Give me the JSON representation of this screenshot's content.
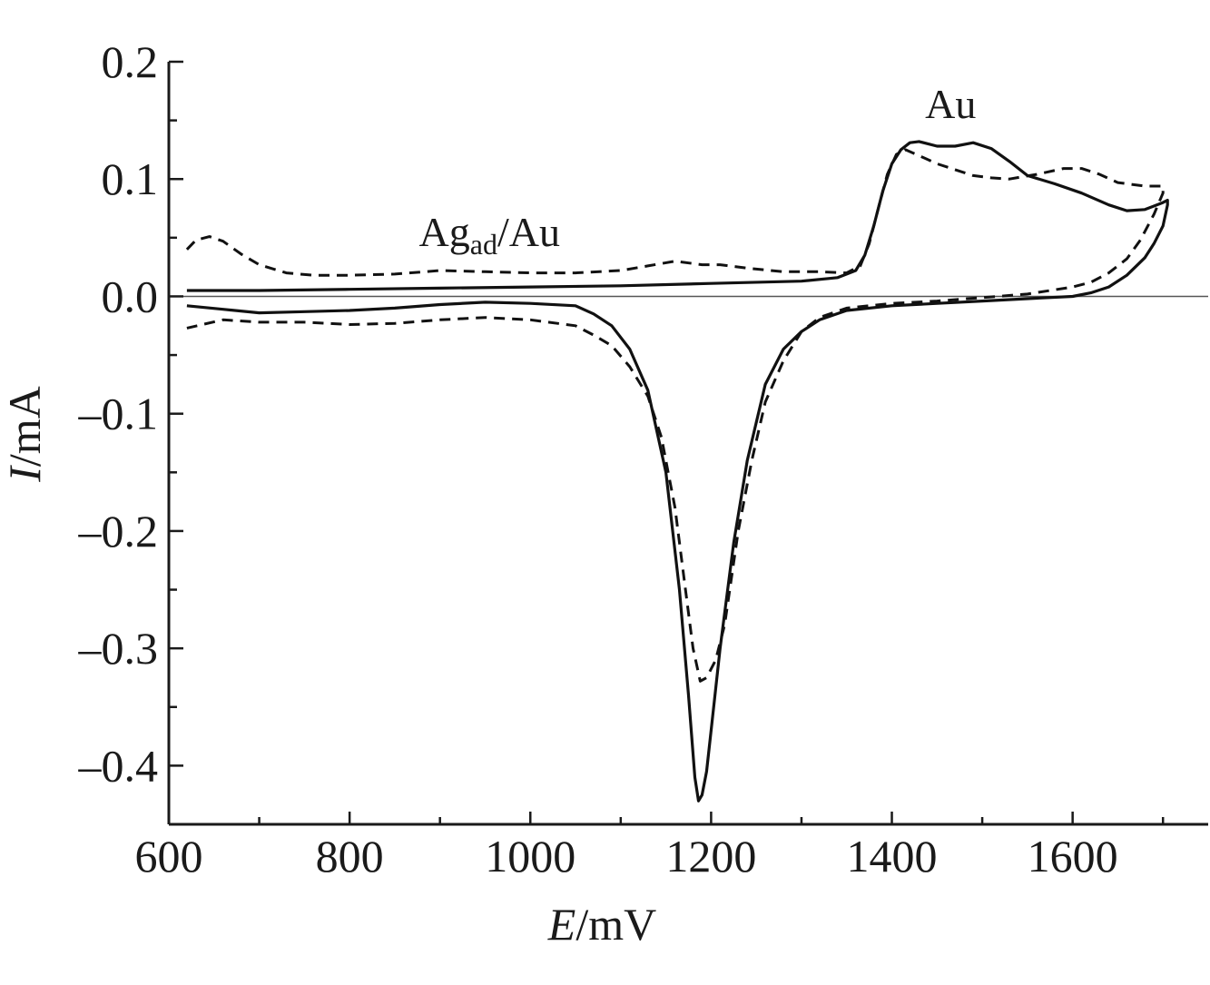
{
  "chart_data": {
    "type": "line",
    "xlabel_var": "E",
    "xlabel_unit": "/mV",
    "ylabel_var": "I",
    "ylabel_unit": "/mA",
    "xlim": [
      600,
      1750
    ],
    "ylim": [
      -0.45,
      0.2
    ],
    "x_ticks": [
      {
        "value": 600,
        "label": "600"
      },
      {
        "value": 800,
        "label": "800"
      },
      {
        "value": 1000,
        "label": "1000"
      },
      {
        "value": 1200,
        "label": "1200"
      },
      {
        "value": 1400,
        "label": "1400"
      },
      {
        "value": 1600,
        "label": "1600"
      }
    ],
    "x_minor_ticks": [
      700,
      900,
      1100,
      1300,
      1500,
      1700
    ],
    "y_ticks": [
      {
        "value": 0.2,
        "label": "0.2"
      },
      {
        "value": 0.1,
        "label": "0.1"
      },
      {
        "value": 0.0,
        "label": "0.0"
      },
      {
        "value": -0.1,
        "label": "–0.1"
      },
      {
        "value": -0.2,
        "label": "–0.2"
      },
      {
        "value": -0.3,
        "label": "–0.3"
      },
      {
        "value": -0.4,
        "label": "–0.4"
      }
    ],
    "y_minor_ticks": [
      0.15,
      0.05,
      -0.05,
      -0.15,
      -0.25,
      -0.35
    ],
    "zero_line": true,
    "grid": false,
    "annotations": [
      {
        "text": "Au",
        "sub": "",
        "x": 1465,
        "y": 0.152
      },
      {
        "text": "Ag",
        "sub": "ad",
        "text_after": "/Au",
        "x": 1000,
        "y": 0.043
      }
    ],
    "series": [
      {
        "style": "solid",
        "points": [
          [
            620,
            0.005
          ],
          [
            700,
            0.005
          ],
          [
            800,
            0.006
          ],
          [
            900,
            0.007
          ],
          [
            1000,
            0.008
          ],
          [
            1100,
            0.009
          ],
          [
            1200,
            0.011
          ],
          [
            1300,
            0.013
          ],
          [
            1340,
            0.016
          ],
          [
            1360,
            0.022
          ],
          [
            1370,
            0.035
          ],
          [
            1380,
            0.06
          ],
          [
            1390,
            0.09
          ],
          [
            1400,
            0.113
          ],
          [
            1410,
            0.125
          ],
          [
            1420,
            0.131
          ],
          [
            1430,
            0.132
          ],
          [
            1450,
            0.128
          ],
          [
            1470,
            0.128
          ],
          [
            1490,
            0.131
          ],
          [
            1510,
            0.126
          ],
          [
            1530,
            0.115
          ],
          [
            1550,
            0.103
          ],
          [
            1580,
            0.096
          ],
          [
            1610,
            0.088
          ],
          [
            1640,
            0.078
          ],
          [
            1660,
            0.073
          ],
          [
            1680,
            0.074
          ],
          [
            1700,
            0.08
          ],
          [
            1705,
            0.082
          ],
          [
            1705,
            0.078
          ],
          [
            1700,
            0.06
          ],
          [
            1690,
            0.045
          ],
          [
            1680,
            0.033
          ],
          [
            1660,
            0.018
          ],
          [
            1640,
            0.008
          ],
          [
            1620,
            0.003
          ],
          [
            1600,
            0.0
          ],
          [
            1550,
            -0.002
          ],
          [
            1500,
            -0.004
          ],
          [
            1450,
            -0.006
          ],
          [
            1400,
            -0.008
          ],
          [
            1350,
            -0.012
          ],
          [
            1320,
            -0.02
          ],
          [
            1300,
            -0.03
          ],
          [
            1280,
            -0.045
          ],
          [
            1260,
            -0.075
          ],
          [
            1240,
            -0.14
          ],
          [
            1225,
            -0.21
          ],
          [
            1210,
            -0.3
          ],
          [
            1200,
            -0.37
          ],
          [
            1195,
            -0.405
          ],
          [
            1190,
            -0.425
          ],
          [
            1186,
            -0.43
          ],
          [
            1182,
            -0.41
          ],
          [
            1175,
            -0.34
          ],
          [
            1165,
            -0.25
          ],
          [
            1150,
            -0.15
          ],
          [
            1130,
            -0.08
          ],
          [
            1110,
            -0.045
          ],
          [
            1090,
            -0.025
          ],
          [
            1070,
            -0.015
          ],
          [
            1050,
            -0.008
          ],
          [
            1000,
            -0.006
          ],
          [
            950,
            -0.005
          ],
          [
            900,
            -0.007
          ],
          [
            850,
            -0.01
          ],
          [
            800,
            -0.012
          ],
          [
            750,
            -0.013
          ],
          [
            700,
            -0.014
          ],
          [
            660,
            -0.011
          ],
          [
            620,
            -0.008
          ]
        ]
      },
      {
        "style": "dashed",
        "points": [
          [
            620,
            0.04
          ],
          [
            630,
            0.048
          ],
          [
            645,
            0.051
          ],
          [
            660,
            0.047
          ],
          [
            680,
            0.036
          ],
          [
            700,
            0.027
          ],
          [
            730,
            0.02
          ],
          [
            760,
            0.018
          ],
          [
            800,
            0.018
          ],
          [
            850,
            0.019
          ],
          [
            900,
            0.022
          ],
          [
            950,
            0.021
          ],
          [
            1000,
            0.02
          ],
          [
            1050,
            0.02
          ],
          [
            1100,
            0.022
          ],
          [
            1130,
            0.026
          ],
          [
            1160,
            0.03
          ],
          [
            1190,
            0.027
          ],
          [
            1210,
            0.027
          ],
          [
            1240,
            0.024
          ],
          [
            1280,
            0.021
          ],
          [
            1320,
            0.021
          ],
          [
            1350,
            0.02
          ],
          [
            1365,
            0.026
          ],
          [
            1375,
            0.045
          ],
          [
            1385,
            0.075
          ],
          [
            1395,
            0.104
          ],
          [
            1405,
            0.121
          ],
          [
            1415,
            0.125
          ],
          [
            1430,
            0.12
          ],
          [
            1450,
            0.113
          ],
          [
            1470,
            0.108
          ],
          [
            1490,
            0.103
          ],
          [
            1510,
            0.101
          ],
          [
            1530,
            0.1
          ],
          [
            1560,
            0.104
          ],
          [
            1590,
            0.109
          ],
          [
            1610,
            0.109
          ],
          [
            1630,
            0.104
          ],
          [
            1650,
            0.097
          ],
          [
            1680,
            0.094
          ],
          [
            1700,
            0.094
          ],
          [
            1700,
            0.088
          ],
          [
            1690,
            0.07
          ],
          [
            1675,
            0.048
          ],
          [
            1660,
            0.032
          ],
          [
            1640,
            0.02
          ],
          [
            1620,
            0.012
          ],
          [
            1600,
            0.008
          ],
          [
            1550,
            0.002
          ],
          [
            1500,
            -0.001
          ],
          [
            1450,
            -0.004
          ],
          [
            1400,
            -0.006
          ],
          [
            1350,
            -0.01
          ],
          [
            1320,
            -0.018
          ],
          [
            1300,
            -0.03
          ],
          [
            1280,
            -0.055
          ],
          [
            1260,
            -0.09
          ],
          [
            1245,
            -0.14
          ],
          [
            1230,
            -0.2
          ],
          [
            1215,
            -0.28
          ],
          [
            1205,
            -0.31
          ],
          [
            1195,
            -0.325
          ],
          [
            1188,
            -0.328
          ],
          [
            1180,
            -0.3
          ],
          [
            1170,
            -0.24
          ],
          [
            1160,
            -0.18
          ],
          [
            1145,
            -0.12
          ],
          [
            1130,
            -0.085
          ],
          [
            1110,
            -0.06
          ],
          [
            1090,
            -0.042
          ],
          [
            1070,
            -0.033
          ],
          [
            1050,
            -0.025
          ],
          [
            1000,
            -0.02
          ],
          [
            950,
            -0.018
          ],
          [
            900,
            -0.02
          ],
          [
            850,
            -0.023
          ],
          [
            800,
            -0.024
          ],
          [
            750,
            -0.022
          ],
          [
            700,
            -0.022
          ],
          [
            660,
            -0.02
          ],
          [
            620,
            -0.027
          ]
        ]
      }
    ]
  }
}
